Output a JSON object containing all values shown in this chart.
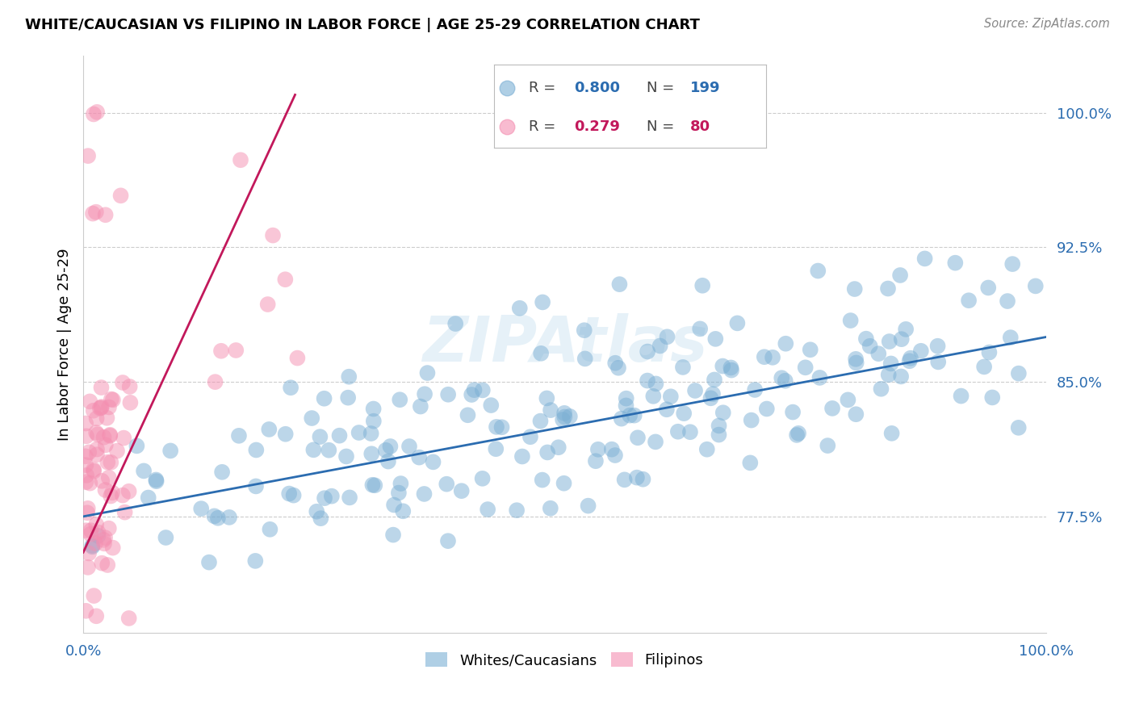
{
  "title": "WHITE/CAUCASIAN VS FILIPINO IN LABOR FORCE | AGE 25-29 CORRELATION CHART",
  "source": "Source: ZipAtlas.com",
  "ylabel": "In Labor Force | Age 25-29",
  "blue_color": "#7BAFD4",
  "pink_color": "#F48FB1",
  "blue_line_color": "#2B6CB0",
  "pink_line_color": "#C2185B",
  "watermark": "ZIPAtlas",
  "legend_R_blue": "0.800",
  "legend_N_blue": "199",
  "legend_R_pink": "0.279",
  "legend_N_pink": "80",
  "xlim": [
    0.0,
    1.0
  ],
  "ylim": [
    0.71,
    1.032
  ],
  "ytick_vals": [
    0.775,
    0.85,
    0.925,
    1.0
  ],
  "ytick_labels": [
    "77.5%",
    "85.0%",
    "92.5%",
    "100.0%"
  ],
  "blue_trend_x0": 0.0,
  "blue_trend_x1": 1.0,
  "blue_trend_y0": 0.775,
  "blue_trend_y1": 0.875,
  "pink_trend_x0": 0.0,
  "pink_trend_x1": 0.22,
  "pink_trend_y0": 0.755,
  "pink_trend_y1": 1.01
}
